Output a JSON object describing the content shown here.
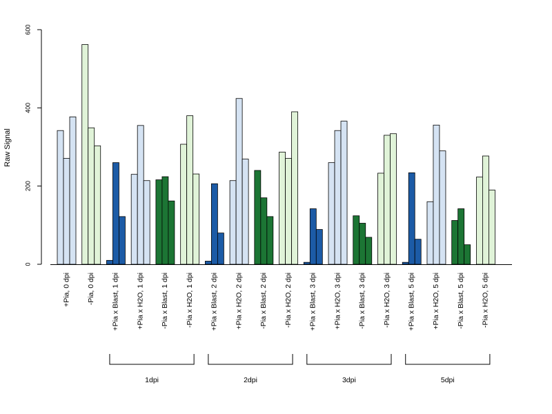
{
  "chart_data": {
    "type": "bar",
    "title": "",
    "xlabel": "",
    "ylabel": "Raw Signal",
    "ylim": [
      0,
      600
    ],
    "yticks": [
      0,
      200,
      400,
      600
    ],
    "grid": false,
    "legend": "none",
    "categories": [
      "+Pia, 0 dpi",
      "-Pia, 0 dpi",
      "+Pia x Blast, 1 dpi",
      "+Pia x H2O, 1 dpi",
      "-Pia x Blast, 1 dpi",
      "-Pia x H2O, 1 dpi",
      "+Pia x Blast, 2 dpi",
      "+Pia x H2O, 2 dpi",
      "-Pia x Blast, 2 dpi",
      "-Pia x H2O, 2 dpi",
      "+Pia x Blast, 3 dpi",
      "+Pia x H2O, 3 dpi",
      "-Pia x Blast, 3 dpi",
      "-Pia x H2O, 3 dpi",
      "+Pia x Blast, 5 dpi",
      "+Pia x H2O, 5 dpi",
      "-Pia x Blast, 5 dpi",
      "-Pia x H2O, 5 dpi"
    ],
    "category_colors": [
      "#d5e3f3",
      "#e0f3d8",
      "#1c5ba6",
      "#d5e3f3",
      "#1c7534",
      "#e0f3d8",
      "#1c5ba6",
      "#d5e3f3",
      "#1c7534",
      "#e0f3d8",
      "#1c5ba6",
      "#d5e3f3",
      "#1c7534",
      "#e0f3d8",
      "#1c5ba6",
      "#d5e3f3",
      "#1c7534",
      "#e0f3d8"
    ],
    "values": [
      [
        342,
        271,
        377
      ],
      [
        562,
        349,
        303
      ],
      [
        10,
        260,
        122
      ],
      [
        230,
        355,
        214
      ],
      [
        216,
        224,
        162
      ],
      [
        307,
        380,
        231
      ],
      [
        8,
        206,
        80
      ],
      [
        214,
        424,
        269
      ],
      [
        240,
        170,
        122
      ],
      [
        287,
        271,
        390
      ],
      [
        5,
        142,
        89
      ],
      [
        260,
        342,
        366
      ],
      [
        124,
        105,
        69
      ],
      [
        233,
        330,
        334
      ],
      [
        5,
        234,
        64
      ],
      [
        160,
        356,
        290
      ],
      [
        112,
        142,
        50
      ],
      [
        223,
        277,
        190
      ]
    ],
    "groups": [
      {
        "label": "1dpi",
        "first": 2,
        "last": 5
      },
      {
        "label": "2dpi",
        "first": 6,
        "last": 9
      },
      {
        "label": "3dpi",
        "first": 10,
        "last": 13
      },
      {
        "label": "5dpi",
        "first": 14,
        "last": 17
      }
    ]
  }
}
